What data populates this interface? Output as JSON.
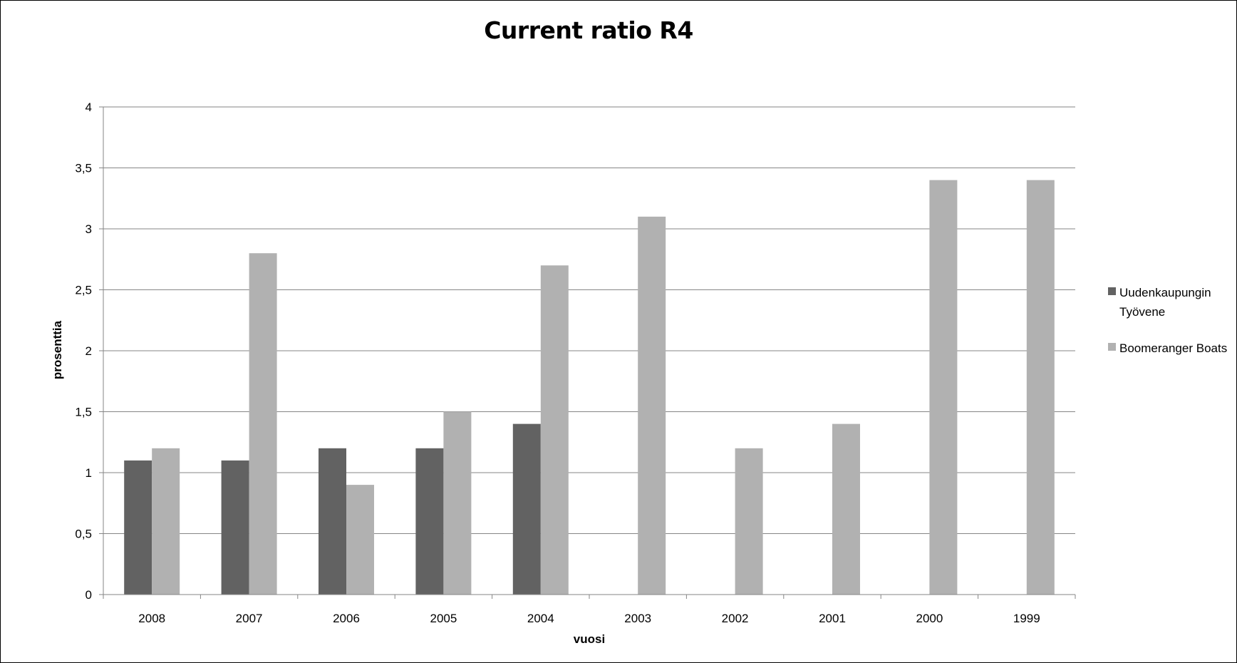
{
  "chart_data": {
    "type": "bar",
    "title": "Current ratio R4",
    "xlabel": "vuosi",
    "ylabel": "prosenttia",
    "categories": [
      "2008",
      "2007",
      "2006",
      "2005",
      "2004",
      "2003",
      "2002",
      "2001",
      "2000",
      "1999"
    ],
    "series": [
      {
        "name": "Uudenkaupungin Työvene",
        "color": "#626262",
        "values": [
          1.1,
          1.1,
          1.2,
          1.2,
          1.4,
          null,
          null,
          null,
          null,
          null
        ]
      },
      {
        "name": "Boomeranger Boats",
        "color": "#b1b1b1",
        "values": [
          1.2,
          2.8,
          0.9,
          1.5,
          2.7,
          3.1,
          1.2,
          1.4,
          3.4,
          3.4
        ]
      }
    ],
    "ylim": [
      0,
      4
    ],
    "yticks": [
      "0",
      "0,5",
      "1",
      "1,5",
      "2",
      "2,5",
      "3",
      "3,5",
      "4"
    ],
    "grid": true,
    "legend_position": "right"
  }
}
